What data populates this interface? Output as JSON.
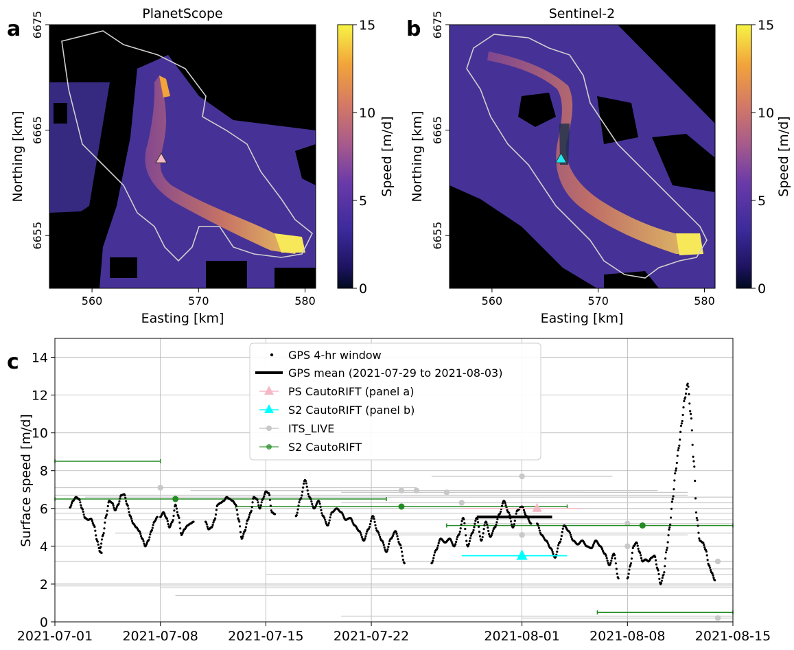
{
  "chart_data": [
    {
      "panel": "a",
      "type": "heatmap",
      "title": "PlanetScope",
      "xlabel": "Easting [km]",
      "ylabel": "Northing [km]",
      "xticks": [
        560,
        570,
        580
      ],
      "yticks": [
        6655,
        6665,
        6675
      ],
      "xlim": [
        556,
        581
      ],
      "ylim": [
        6650,
        6675
      ],
      "colorbar": {
        "label": "Speed [m/d]",
        "ticks": [
          0,
          5,
          10,
          15
        ],
        "range": [
          0,
          15
        ],
        "colormap": "plasma"
      },
      "marker": {
        "x": 566.5,
        "y": 6662.3,
        "shape": "triangle",
        "color": "#f4b8c6"
      }
    },
    {
      "panel": "b",
      "type": "heatmap",
      "title": "Sentinel-2",
      "xlabel": "Easting [km]",
      "ylabel": "Northing [km]",
      "xticks": [
        560,
        570,
        580
      ],
      "yticks": [
        6655,
        6665,
        6675
      ],
      "xlim": [
        556,
        581
      ],
      "ylim": [
        6650,
        6675
      ],
      "colorbar": {
        "label": "Speed [m/d]",
        "ticks": [
          0,
          5,
          10,
          15
        ],
        "range": [
          0,
          15
        ],
        "colormap": "plasma"
      },
      "marker": {
        "x": 566.5,
        "y": 6662.3,
        "shape": "triangle",
        "color": "#22e6ee"
      }
    },
    {
      "panel": "c",
      "type": "scatter",
      "xlabel": "",
      "ylabel": "Surface speed [m/d]",
      "ylim": [
        0,
        15
      ],
      "xlim": [
        "2021-07-01",
        "2021-08-15"
      ],
      "xticks": [
        "2021-07-01",
        "2021-07-08",
        "2021-07-15",
        "2021-07-22",
        "2021-08-01",
        "2021-08-08",
        "2021-08-15"
      ],
      "yticks": [
        0,
        2,
        4,
        6,
        8,
        10,
        12,
        14
      ],
      "grid": true,
      "legend_position": "top-center",
      "legend": [
        "GPS 4-hr window",
        "GPS mean (2021-07-29 to 2021-08-03)",
        "PS CautoRIFT (panel a)",
        "S2 CautoRIFT (panel b)",
        "ITS_LIVE",
        "S2 CautoRIFT"
      ],
      "gps_segments": [
        {
          "start": "2021-07-02",
          "end": "2021-07-04",
          "points": [
            [
              0.0,
              6.05
            ],
            [
              0.2,
              6.4
            ],
            [
              0.4,
              6.6
            ],
            [
              0.6,
              6.5
            ],
            [
              0.8,
              6.0
            ],
            [
              1.0,
              5.5
            ],
            [
              1.2,
              5.4
            ],
            [
              1.4,
              5.45
            ],
            [
              1.6,
              5.1
            ],
            [
              1.8,
              4.3
            ],
            [
              2.0,
              3.7
            ],
            [
              2.1,
              3.65
            ]
          ]
        },
        {
          "start": "2021-07-04",
          "end": "2021-07-08",
          "points": [
            [
              0.0,
              3.9
            ],
            [
              0.2,
              4.6
            ],
            [
              0.4,
              5.6
            ],
            [
              0.6,
              6.4
            ],
            [
              0.8,
              6.3
            ],
            [
              1.0,
              5.9
            ],
            [
              1.2,
              6.2
            ],
            [
              1.4,
              6.7
            ],
            [
              1.6,
              6.75
            ],
            [
              1.8,
              6.2
            ],
            [
              2.0,
              5.6
            ],
            [
              2.2,
              5.2
            ],
            [
              2.4,
              5.0
            ],
            [
              2.6,
              4.8
            ],
            [
              2.8,
              4.4
            ],
            [
              3.0,
              4.0
            ],
            [
              3.2,
              4.3
            ],
            [
              3.4,
              4.8
            ],
            [
              3.6,
              5.3
            ],
            [
              3.8,
              5.55
            ]
          ]
        },
        {
          "start": "2021-07-08",
          "end": "2021-07-10",
          "points": [
            [
              0.0,
              5.55
            ],
            [
              0.2,
              5.8
            ],
            [
              0.4,
              5.5
            ],
            [
              0.6,
              5.0
            ],
            [
              0.8,
              5.3
            ],
            [
              1.0,
              6.2
            ],
            [
              1.2,
              5.6
            ],
            [
              1.4,
              4.6
            ],
            [
              1.6,
              4.9
            ],
            [
              1.8,
              5.1
            ],
            [
              2.0,
              5.2
            ],
            [
              2.2,
              5.3
            ]
          ]
        },
        {
          "start": "2021-07-11",
          "end": "2021-07-17",
          "points": [
            [
              0.0,
              5.3
            ],
            [
              0.2,
              4.9
            ],
            [
              0.4,
              5.0
            ],
            [
              0.6,
              5.4
            ],
            [
              0.8,
              6.2
            ],
            [
              1.0,
              6.3
            ],
            [
              1.2,
              6.4
            ],
            [
              1.4,
              6.6
            ],
            [
              1.6,
              6.5
            ],
            [
              1.8,
              6.4
            ],
            [
              2.0,
              6.2
            ],
            [
              2.2,
              5.4
            ],
            [
              2.4,
              4.4
            ],
            [
              2.6,
              4.8
            ],
            [
              2.8,
              5.4
            ],
            [
              3.0,
              5.8
            ],
            [
              3.2,
              6.6
            ],
            [
              3.4,
              6.5
            ],
            [
              3.6,
              6.0
            ],
            [
              3.8,
              6.5
            ],
            [
              4.0,
              6.9
            ],
            [
              4.2,
              6.8
            ],
            [
              4.4,
              5.8
            ],
            [
              4.6,
              5.7
            ]
          ]
        },
        {
          "start": "2021-07-17",
          "end": "2021-07-25",
          "points": [
            [
              0.0,
              5.6
            ],
            [
              0.3,
              6.5
            ],
            [
              0.6,
              7.5
            ],
            [
              0.9,
              6.6
            ],
            [
              1.2,
              6.0
            ],
            [
              1.5,
              6.4
            ],
            [
              1.8,
              5.6
            ],
            [
              2.1,
              5.1
            ],
            [
              2.4,
              5.8
            ],
            [
              2.7,
              6.0
            ],
            [
              3.0,
              5.8
            ],
            [
              3.3,
              5.4
            ],
            [
              3.6,
              5.5
            ],
            [
              3.9,
              5.1
            ],
            [
              4.2,
              4.8
            ],
            [
              4.5,
              4.3
            ],
            [
              4.8,
              4.9
            ],
            [
              5.1,
              5.6
            ],
            [
              5.4,
              4.8
            ],
            [
              5.7,
              4.3
            ],
            [
              6.0,
              3.7
            ],
            [
              6.3,
              4.4
            ],
            [
              6.6,
              4.8
            ],
            [
              6.9,
              4.1
            ],
            [
              7.2,
              3.1
            ]
          ]
        },
        {
          "start": "2021-07-26",
          "end": "2021-08-03",
          "points": [
            [
              0.0,
              3.1
            ],
            [
              0.3,
              3.8
            ],
            [
              0.6,
              4.4
            ],
            [
              0.9,
              4.2
            ],
            [
              1.2,
              4.4
            ],
            [
              1.5,
              4.0
            ],
            [
              1.8,
              4.6
            ],
            [
              2.1,
              5.5
            ],
            [
              2.4,
              4.0
            ],
            [
              2.7,
              4.7
            ],
            [
              3.0,
              5.5
            ],
            [
              3.3,
              4.3
            ],
            [
              3.6,
              5.3
            ],
            [
              3.9,
              4.5
            ],
            [
              4.2,
              5.0
            ],
            [
              4.5,
              5.7
            ],
            [
              4.8,
              6.4
            ],
            [
              5.1,
              5.8
            ],
            [
              5.4,
              5.0
            ],
            [
              5.7,
              5.9
            ],
            [
              6.0,
              6.1
            ],
            [
              6.3,
              5.6
            ],
            [
              6.6,
              5.2
            ]
          ]
        },
        {
          "start": "2021-08-02",
          "end": "2021-08-07",
          "points": [
            [
              0.0,
              5.2
            ],
            [
              0.3,
              4.6
            ],
            [
              0.6,
              4.3
            ],
            [
              0.9,
              3.9
            ],
            [
              1.2,
              3.4
            ],
            [
              1.5,
              4.2
            ],
            [
              1.8,
              5.1
            ],
            [
              2.1,
              4.8
            ],
            [
              2.4,
              4.3
            ],
            [
              2.7,
              4.1
            ],
            [
              3.0,
              4.3
            ],
            [
              3.3,
              4.0
            ],
            [
              3.6,
              3.9
            ],
            [
              3.9,
              4.3
            ],
            [
              4.2,
              4.0
            ],
            [
              4.5,
              3.6
            ],
            [
              4.8,
              3.0
            ],
            [
              5.1,
              3.6
            ],
            [
              5.4,
              2.3
            ]
          ]
        },
        {
          "start": "2021-08-08",
          "end": "2021-08-15",
          "points": [
            [
              0.0,
              2.3
            ],
            [
              0.2,
              3.0
            ],
            [
              0.4,
              4.0
            ],
            [
              0.6,
              4.2
            ],
            [
              0.8,
              3.7
            ],
            [
              1.0,
              3.2
            ],
            [
              1.2,
              3.3
            ],
            [
              1.4,
              3.2
            ],
            [
              1.6,
              3.4
            ],
            [
              1.8,
              3.5
            ],
            [
              2.0,
              2.8
            ],
            [
              2.2,
              2.0
            ],
            [
              2.4,
              2.5
            ],
            [
              2.6,
              3.8
            ],
            [
              2.8,
              5.0
            ],
            [
              3.0,
              6.5
            ],
            [
              3.2,
              8.0
            ],
            [
              3.4,
              9.2
            ],
            [
              3.6,
              10.5
            ],
            [
              3.8,
              11.8
            ],
            [
              4.0,
              12.6
            ],
            [
              4.2,
              11.0
            ],
            [
              4.4,
              8.5
            ],
            [
              4.6,
              5.5
            ],
            [
              4.8,
              4.3
            ],
            [
              5.0,
              4.2
            ],
            [
              5.2,
              3.8
            ],
            [
              5.4,
              3.0
            ],
            [
              5.6,
              2.6
            ],
            [
              5.8,
              2.2
            ]
          ]
        }
      ],
      "gps_mean": {
        "start": "2021-07-29",
        "end": "2021-08-03",
        "value": 5.55
      },
      "ps_cautorift_panel_a": {
        "date": "2021-08-02",
        "value": 6.0,
        "xerr_start": "2021-07-28",
        "xerr_end": "2021-08-05"
      },
      "s2_cautorift_panel_b": {
        "date": "2021-08-01",
        "value": 3.5,
        "xerr_start": "2021-07-28",
        "xerr_end": "2021-08-04"
      },
      "its_live": [
        {
          "date": "2021-07-08",
          "value": 7.1,
          "xerr_start": "2021-06-20",
          "xerr_end": "2021-07-25"
        },
        {
          "date": "2021-07-24",
          "value": 6.95,
          "xerr_start": "2021-07-10",
          "xerr_end": "2021-08-05"
        },
        {
          "date": "2021-07-25",
          "value": 6.95,
          "xerr_start": "2021-07-15",
          "xerr_end": "2021-08-10"
        },
        {
          "date": "2021-07-27",
          "value": 6.85,
          "xerr_start": "2021-07-20",
          "xerr_end": "2021-08-12"
        },
        {
          "date": "2021-07-28",
          "value": 6.3,
          "xerr_start": "2021-07-20",
          "xerr_end": "2021-08-15"
        },
        {
          "date": "2021-08-01",
          "value": 7.7,
          "xerr_start": "2021-07-26",
          "xerr_end": "2021-08-07"
        },
        {
          "date": "2021-08-01",
          "value": 4.6,
          "xerr_start": "2021-07-22",
          "xerr_end": "2021-08-12"
        },
        {
          "date": "2021-08-08",
          "value": 5.2,
          "xerr_start": "2021-07-28",
          "xerr_end": "2021-08-15"
        },
        {
          "date": "2021-08-08",
          "value": 4.0,
          "xerr_start": "2021-07-15",
          "xerr_end": "2021-08-15"
        },
        {
          "date": "2021-08-14",
          "value": 3.2,
          "xerr_start": "2021-07-22",
          "xerr_end": "2021-08-15"
        },
        {
          "date": "2021-08-14",
          "value": 0.2,
          "xerr_start": "2021-08-01",
          "xerr_end": "2021-08-15"
        }
      ],
      "its_live_background_ranges": [
        {
          "start": "2021-07-01",
          "end": "2021-08-15",
          "value": 1.9
        },
        {
          "start": "2021-07-08",
          "end": "2021-08-15",
          "value": 1.8
        },
        {
          "start": "2021-07-09",
          "end": "2021-08-15",
          "value": 1.4
        },
        {
          "start": "2021-07-15",
          "end": "2021-08-15",
          "value": 2.5
        },
        {
          "start": "2021-07-22",
          "end": "2021-08-15",
          "value": 2.8
        },
        {
          "start": "2021-07-01",
          "end": "2021-08-15",
          "value": 3.2
        },
        {
          "start": "2021-07-05",
          "end": "2021-08-15",
          "value": 4.7
        },
        {
          "start": "2021-07-01",
          "end": "2021-08-15",
          "value": 5.4
        },
        {
          "start": "2021-07-01",
          "end": "2021-08-15",
          "value": 5.75
        },
        {
          "start": "2021-07-03",
          "end": "2021-08-15",
          "value": 6.6
        },
        {
          "start": "2021-07-01",
          "end": "2021-08-12",
          "value": 6.7
        },
        {
          "start": "2021-07-20",
          "end": "2021-08-15",
          "value": 0.3
        }
      ],
      "s2_cautorift": [
        {
          "date": "2021-07-09",
          "value": 6.5,
          "xerr_start": "2021-07-01",
          "xerr_end": "2021-07-23"
        },
        {
          "date": "2021-07-24",
          "value": 6.1,
          "xerr_start": "2021-07-13",
          "xerr_end": "2021-08-04"
        },
        {
          "date": "2021-08-09",
          "value": 5.1,
          "xerr_start": "2021-07-27",
          "xerr_end": "2021-08-15"
        },
        {
          "date": "2021-07-06",
          "value": 8.5,
          "xerr_start": "2021-07-01",
          "xerr_end": "2021-07-08"
        },
        {
          "date": "2021-08-10",
          "value": 0.5,
          "xerr_start": "2021-08-06",
          "xerr_end": "2021-08-15"
        }
      ],
      "colors": {
        "gps": "#000000",
        "gps_mean": "#000000",
        "ps_cautorift": "#f4b8c6",
        "s2_cautorift_panel_b": "#00ffff",
        "its_live": "#c8c8c8",
        "s2_cautorift": "#228B22"
      }
    }
  ]
}
